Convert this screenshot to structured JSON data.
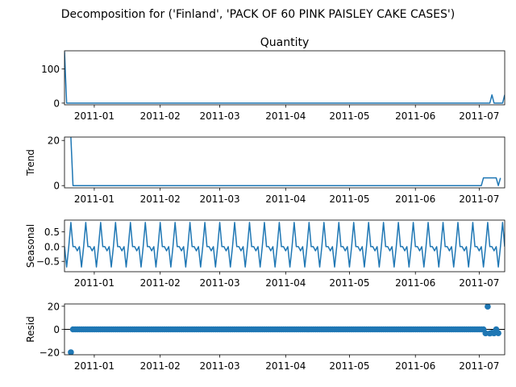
{
  "suptitle": "Decomposition for ('Finland', 'PACK OF 60 PINK PAISLEY CAKE CASES')",
  "colors": {
    "line": "#1f77b4",
    "axis": "#000000",
    "background": "#ffffff"
  },
  "chart_data": [
    {
      "type": "line",
      "title": "Quantity",
      "ylabel": "",
      "xlim": [
        "2010-12-18",
        "2011-07-13"
      ],
      "ylim": [
        -5,
        153
      ],
      "y_ticks": [
        0,
        100
      ],
      "x_ticks": [
        "2011-01",
        "2011-02",
        "2011-03",
        "2011-04",
        "2011-05",
        "2011-06",
        "2011-07"
      ],
      "grid": false,
      "series": [
        {
          "points": [
            [
              "2010-12-18",
              150
            ],
            [
              "2010-12-19",
              0
            ],
            [
              "2011-07-06",
              0
            ],
            [
              "2011-07-07",
              24
            ],
            [
              "2011-07-08",
              0
            ],
            [
              "2011-07-12",
              0
            ],
            [
              "2011-07-13",
              24
            ]
          ]
        }
      ]
    },
    {
      "type": "line",
      "title": "",
      "ylabel": "Trend",
      "xlim": [
        "2010-12-18",
        "2011-07-13"
      ],
      "ylim": [
        -1,
        21.5
      ],
      "y_ticks": [
        0,
        20
      ],
      "x_ticks": [
        "2011-01",
        "2011-02",
        "2011-03",
        "2011-04",
        "2011-05",
        "2011-06",
        "2011-07"
      ],
      "grid": false,
      "series": [
        {
          "points": [
            [
              "2010-12-21",
              21.4
            ],
            [
              "2010-12-22",
              0
            ],
            [
              "2011-07-02",
              0
            ],
            [
              "2011-07-03",
              3.4
            ],
            [
              "2011-07-09",
              3.4
            ],
            [
              "2011-07-10",
              0
            ],
            [
              "2011-07-11",
              3.4
            ]
          ]
        }
      ]
    },
    {
      "type": "line",
      "title": "",
      "ylabel": "Seasonal",
      "xlim": [
        "2010-12-18",
        "2011-07-13"
      ],
      "ylim": [
        -0.85,
        0.9
      ],
      "y_ticks": [
        -0.5,
        0.0,
        0.5
      ],
      "y_tick_labels": [
        "−0.5",
        "0.0",
        "0.5"
      ],
      "x_ticks": [
        "2011-01",
        "2011-02",
        "2011-03",
        "2011-04",
        "2011-05",
        "2011-06",
        "2011-07"
      ],
      "grid": false,
      "series": [
        {
          "periodic": {
            "start": "2010-12-18",
            "end": "2011-07-13",
            "period_days": 7,
            "pattern": [
              0.0,
              -0.69,
              0.0,
              0.82,
              0.0,
              0.0,
              -0.14
            ]
          }
        }
      ]
    },
    {
      "type": "scatter",
      "title": "",
      "ylabel": "Resid",
      "xlim": [
        "2010-12-18",
        "2011-07-13"
      ],
      "ylim": [
        -22,
        22
      ],
      "y_ticks": [
        -20,
        0,
        20
      ],
      "y_tick_labels": [
        "−20",
        "0",
        "20"
      ],
      "x_ticks": [
        "2011-01",
        "2011-02",
        "2011-03",
        "2011-04",
        "2011-05",
        "2011-06",
        "2011-07"
      ],
      "grid": false,
      "baseline": 0,
      "series": [
        {
          "daily": {
            "start": "2010-12-21",
            "end": "2011-07-10",
            "value": 0
          },
          "outliers": [
            [
              "2010-12-21",
              -19.9
            ],
            [
              "2011-07-04",
              -3.4
            ],
            [
              "2011-07-05",
              19.8
            ],
            [
              "2011-07-06",
              -3.5
            ],
            [
              "2011-07-07",
              -3.0
            ],
            [
              "2011-07-08",
              -3.4
            ],
            [
              "2011-07-10",
              -3.3
            ]
          ]
        }
      ]
    }
  ]
}
